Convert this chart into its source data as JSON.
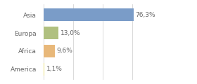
{
  "categories": [
    "Asia",
    "Europa",
    "Africa",
    "America"
  ],
  "values": [
    76.3,
    13.0,
    9.6,
    1.1
  ],
  "labels": [
    "76,3%",
    "13,0%",
    "9,6%",
    "1,1%"
  ],
  "bar_colors": [
    "#7a9cc8",
    "#b0c080",
    "#e8b87a",
    "#e8e080"
  ],
  "background_color": "#ffffff",
  "xlim": [
    0,
    100
  ],
  "bar_height": 0.7,
  "label_fontsize": 6.5,
  "tick_fontsize": 6.5,
  "grid_color": "#cccccc",
  "text_color": "#666666"
}
